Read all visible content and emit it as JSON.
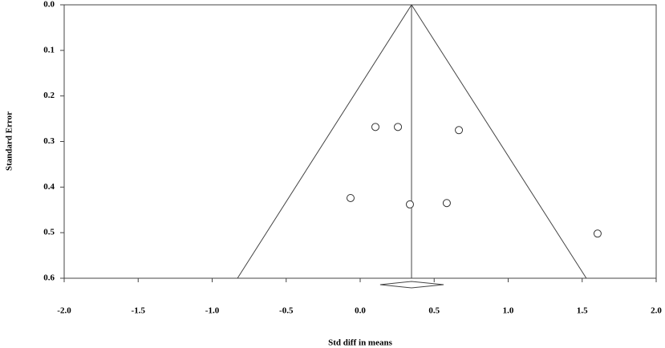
{
  "chart_data": {
    "type": "scatter",
    "x_label": "Std diff in means",
    "y_label": "Standard Error",
    "x": [
      0.103,
      0.255,
      0.667,
      -0.065,
      0.336,
      0.585,
      1.604
    ],
    "values": [
      0.268,
      0.268,
      0.275,
      0.424,
      0.438,
      0.435,
      0.502
    ],
    "summary": {
      "estimate": 0.347,
      "ci": [
        0.135,
        0.564
      ],
      "funnel": [
        -0.829,
        1.528
      ]
    },
    "xlim": [
      -2,
      2
    ],
    "xticks": [
      {
        "value": -2,
        "label": "-2.0"
      },
      -1.5,
      {
        "value": -1,
        "label": "-1.0"
      },
      -0.5,
      {
        "value": 0,
        "label": "0.0"
      },
      0.5,
      {
        "value": 1,
        "label": "1.0"
      },
      1.5,
      {
        "value": 2,
        "label": "2.0"
      }
    ],
    "ylim": [
      0,
      0.6
    ],
    "y_inverted": true,
    "yticks": [
      {
        "value": 0,
        "label": "0.0"
      },
      0.1,
      0.2,
      0.3,
      0.4,
      0.5,
      0.6
    ]
  }
}
